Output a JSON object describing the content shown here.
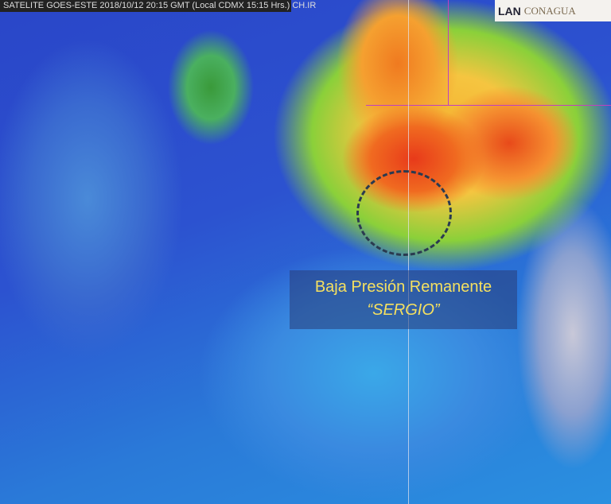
{
  "header": {
    "caption": "SATELITE GOES-ESTE 2018/10/12 20:15 GMT (Local CDMX 15:15 Hrs.) CH.IR"
  },
  "logos": {
    "lan": "LAN",
    "conagua": "CONAGUA"
  },
  "annotation": {
    "line1": "Baja Presión Remanente",
    "line2": "“SERGIO”"
  },
  "colors": {
    "cold_cloud": "#e83a1a",
    "mid_cloud": "#f5c540",
    "low_cloud": "#8ad03a",
    "ocean": "#2a52d0",
    "label_text": "#f5e060"
  }
}
